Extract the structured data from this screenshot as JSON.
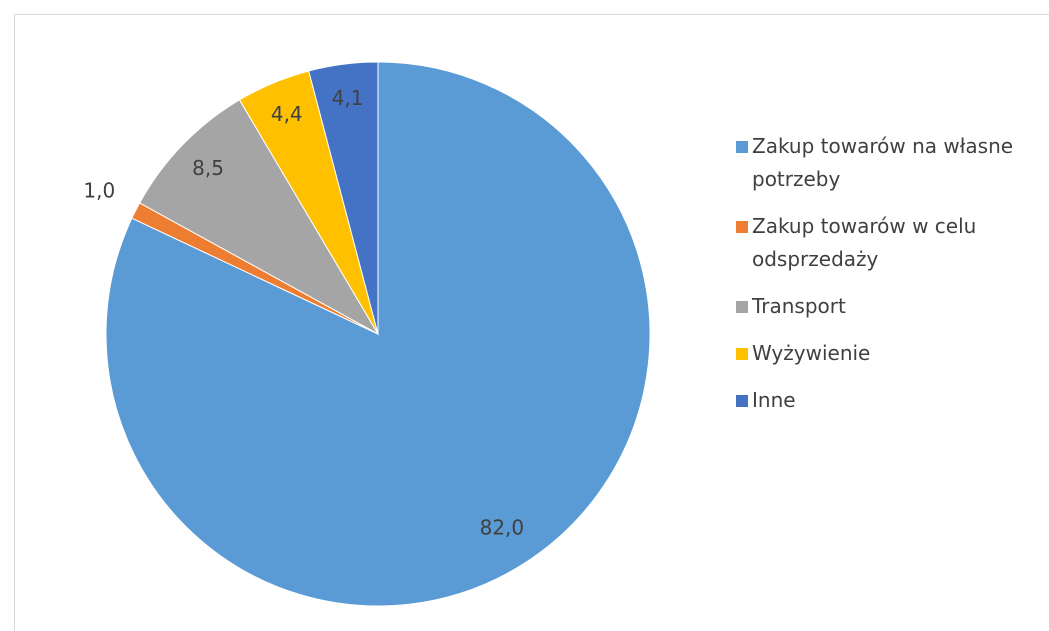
{
  "chart_data": {
    "type": "pie",
    "categories": [
      "Zakup towarów na własne potrzeby",
      "Zakup towarów w celu odsprzedaży",
      "Transport",
      "Wyżywienie",
      "Inne"
    ],
    "values": [
      82.0,
      1.0,
      8.5,
      4.4,
      4.1
    ],
    "value_labels": [
      "82,0",
      "1,0",
      "8,5",
      "4,4",
      "4,1"
    ],
    "colors": [
      "#5b9bd5",
      "#ed7d31",
      "#a5a5a5",
      "#ffc000",
      "#4472c4"
    ],
    "legend": "right"
  }
}
